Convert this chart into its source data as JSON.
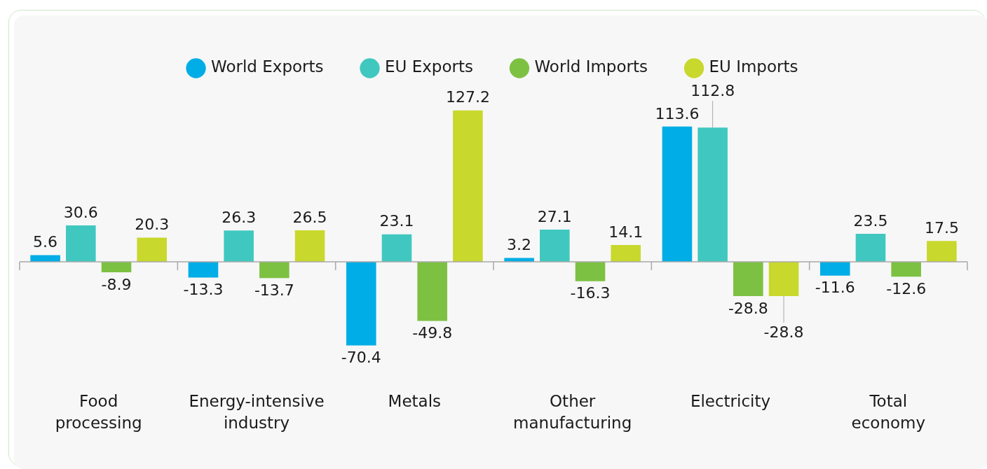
{
  "chart_data": {
    "type": "bar",
    "categories": [
      "Food processing",
      "Energy-intensive industry",
      "Metals",
      "Other manufacturing",
      "Electricity",
      "Total economy"
    ],
    "series": [
      {
        "name": "World Exports",
        "color": "#00ade6",
        "values": [
          5.6,
          -13.3,
          -70.4,
          3.2,
          113.6,
          -11.6
        ]
      },
      {
        "name": "EU Exports",
        "color": "#40c8c0",
        "values": [
          30.6,
          26.3,
          23.1,
          27.1,
          112.8,
          23.5
        ]
      },
      {
        "name": "World Imports",
        "color": "#7dc142",
        "values": [
          -8.9,
          -13.7,
          -49.8,
          -16.3,
          -28.8,
          -12.6
        ]
      },
      {
        "name": "EU Imports",
        "color": "#c8d82c",
        "values": [
          20.3,
          26.5,
          127.2,
          14.1,
          -28.8,
          17.5
        ]
      }
    ],
    "data_labels": true,
    "grid": false,
    "legend": "top"
  }
}
